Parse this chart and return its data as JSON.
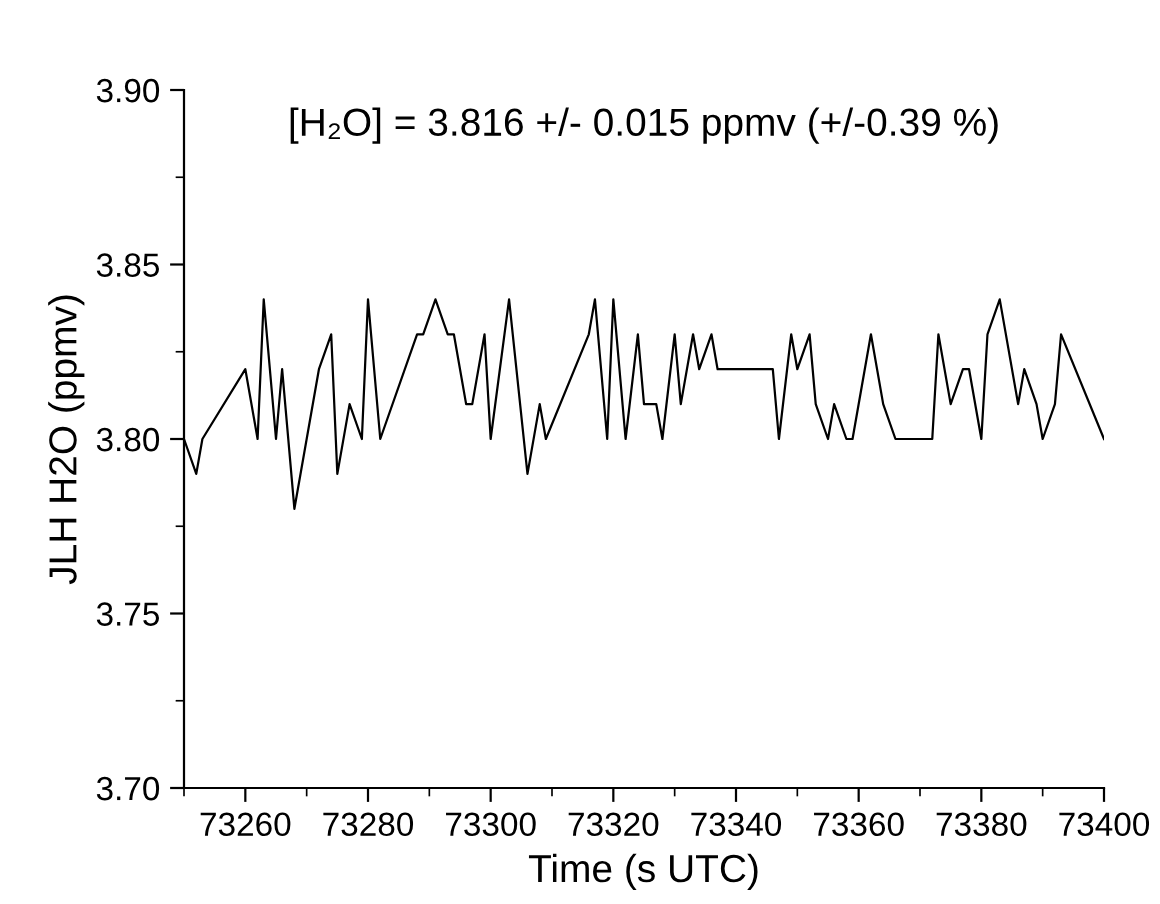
{
  "chart_data": {
    "type": "line",
    "title": "[H₂O] = 3.816 +/- 0.015 ppmv (+/-0.39 %)",
    "xlabel": "Time (s UTC)",
    "ylabel": "JLH H2O (ppmv)",
    "x": [
      73250,
      73252,
      73253,
      73260,
      73262,
      73263,
      73265,
      73266,
      73268,
      73272,
      73274,
      73275,
      73277,
      73279,
      73280,
      73282,
      73288,
      73289,
      73291,
      73293,
      73294,
      73296,
      73297,
      73299,
      73300,
      73303,
      73306,
      73308,
      73309,
      73316,
      73317,
      73319,
      73320,
      73322,
      73324,
      73325,
      73327,
      73328,
      73330,
      73331,
      73333,
      73334,
      73336,
      73337,
      73346,
      73347,
      73349,
      73350,
      73352,
      73353,
      73355,
      73356,
      73358,
      73359,
      73362,
      73364,
      73366,
      73372,
      73373,
      73375,
      73377,
      73378,
      73380,
      73381,
      73383,
      73386,
      73387,
      73389,
      73390,
      73392,
      73393,
      73400
    ],
    "series": [
      {
        "color": "#000000",
        "values": [
          3.8,
          3.79,
          3.8,
          3.82,
          3.8,
          3.84,
          3.8,
          3.82,
          3.78,
          3.82,
          3.83,
          3.79,
          3.81,
          3.8,
          3.84,
          3.8,
          3.83,
          3.83,
          3.84,
          3.83,
          3.83,
          3.81,
          3.81,
          3.83,
          3.8,
          3.84,
          3.79,
          3.81,
          3.8,
          3.83,
          3.84,
          3.8,
          3.84,
          3.8,
          3.83,
          3.81,
          3.81,
          3.8,
          3.83,
          3.81,
          3.83,
          3.82,
          3.83,
          3.82,
          3.82,
          3.8,
          3.83,
          3.82,
          3.83,
          3.81,
          3.8,
          3.81,
          3.8,
          3.8,
          3.83,
          3.81,
          3.8,
          3.8,
          3.83,
          3.81,
          3.82,
          3.82,
          3.8,
          3.83,
          3.84,
          3.81,
          3.82,
          3.81,
          3.8,
          3.81,
          3.83,
          3.8
        ]
      }
    ],
    "xlim": [
      73250,
      73400
    ],
    "xticks": [
      73260,
      73280,
      73300,
      73320,
      73340,
      73360,
      73380,
      73400
    ],
    "ylim": [
      3.7,
      3.9
    ],
    "yticks": [
      {
        "value": 3.7,
        "label": "3.70"
      },
      {
        "value": 3.75,
        "label": "3.75"
      },
      {
        "value": 3.8,
        "label": "3.80"
      },
      {
        "value": 3.85,
        "label": "3.85"
      },
      {
        "value": 3.9,
        "label": "3.90"
      }
    ],
    "grid": false,
    "legend": false,
    "marker": "none",
    "line_style": "solid"
  }
}
